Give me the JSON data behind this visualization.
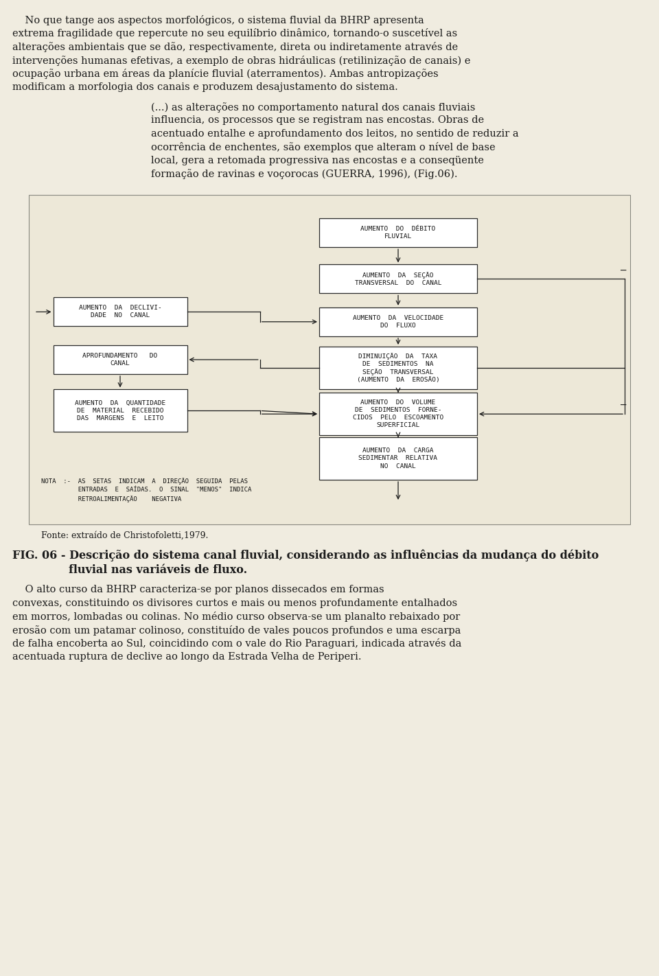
{
  "page_bg": "#f0ece0",
  "diagram_bg": "#ede8d8",
  "text_color": "#1a1a1a",
  "para1_lines": [
    "    No que tange aos aspectos morfológicos, o sistema fluvial da BHRP apresenta",
    "extrema fragilidade que repercute no seu equilíbrio dinâmico, tornando-o suscetível as",
    "alterações ambientais que se dão, respectivamente, direta ou indiretamente através de",
    "intervenções humanas efetivas, a exemplo de obras hidráulicas (retilinização de canais) e",
    "ocupação urbana em áreas da planície fluvial (aterramentos). Ambas antropizações",
    "modificam a morfologia dos canais e produzem desajustamento do sistema."
  ],
  "para2_lines": [
    "(...) as alterações no comportamento natural dos canais fluviais",
    "influencia, os processos que se registram nas encostas. Obras de",
    "acentuado entalhe e aprofundamento dos leitos, no sentido de reduzir a",
    "ocorrência de enchentes, são exemplos que alteram o nível de base",
    "local, gera a retomada progressiva nas encostas e a conseqüente",
    "formação de ravinas e voçorocas (GUERRA, 1996), (Fig.06)."
  ],
  "fonte": "Fonte: extraído de Christofoletti,1979.",
  "fig_caption_line1": "FIG. 06 - Descrição do sistema canal fluvial, considerando as influências da mudança do débito",
  "fig_caption_line2": "fluvial nas variáveis de fluxo.",
  "para3_lines": [
    "    O alto curso da BHRP caracteriza-se por planos dissecados em formas",
    "convexas, constituindo os divisores curtos e mais ou menos profundamente entalhados",
    "em morros, lombadas ou colinas. No médio curso observa-se um planalto rebaixado por",
    "erosão com um patamar colinoso, constituído de vales poucos profundos e uma escarpa",
    "de falha encoberta ao Sul, coincidindo com o vale do Rio Paraguari, indicada através da",
    "acentuada ruptura de declive ao longo da Estrada Velha de Periperi."
  ],
  "nota_lines": [
    "NOTA  :-  AS  SETAS  INDICAM  A  DIREÇÃO  SEGUIDA  PELAS",
    "          ENTRADAS  E  SAÍDAS.  O  SINAL  \"MENOS\"  INDICA",
    "          RETROALIMENTAÇÃO    NEGATIVA"
  ],
  "box_labels": {
    "A": "AUMENTO  DO  DÉBITO\nFLUVIAL",
    "B": "AUMENTO  DA  SEÇÃO\nTRANSVERSAL  DO  CANAL",
    "C": "AUMENTO  DA  VELOCIDADE\nDO  FLUXO",
    "D": "DIMINUIÇÃO  DA  TAXA\nDE  SEDIMENTOS  NA\nSEÇÃO  TRANSVERSAL\n(AUMENTO  DA  EROSÃO)",
    "E": "AUMENTO  DO  VOLUME\nDE  SEDIMENTOS  FORNE-\nCIDOS  PELO  ESCOAMENTO\nSUPERFICIAL",
    "F": "AUMENTO  DA  CARGA\nSEDIMENTAR  RELATIVA\nNO  CANAL",
    "G": "AUMENTO  DA  DECLIVI-\nDADE  NO  CANAL",
    "H": "APROFUNDAMENTO   DO\nCANAL",
    "I": "AUMENTO  DA  QUANTIDADE\nDE  MATERIAL  RECEBIDO\nDAS  MARGENS  E  LEITO"
  }
}
